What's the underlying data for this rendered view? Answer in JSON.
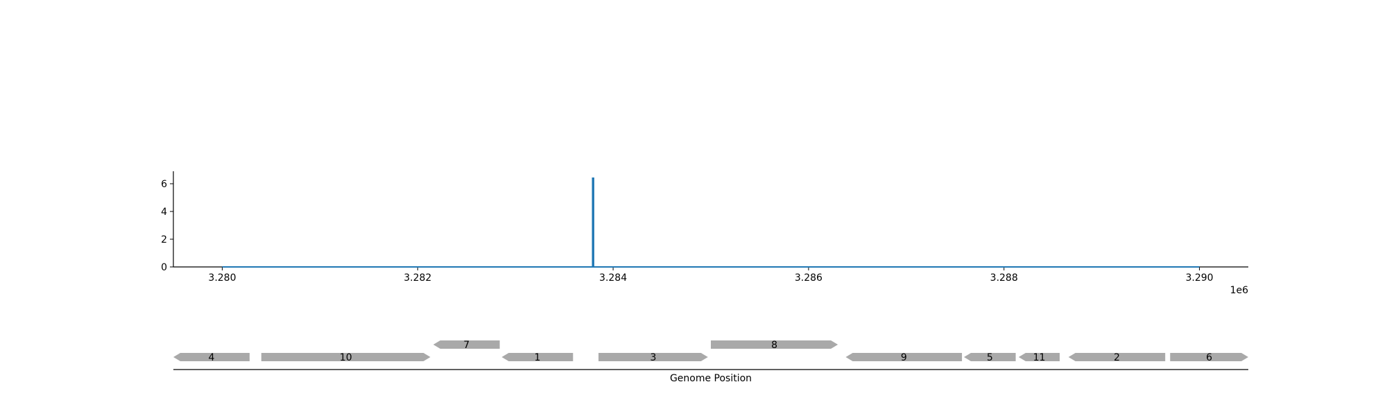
{
  "chart_data": [
    {
      "type": "line",
      "title": "",
      "xlabel": "",
      "ylabel": "",
      "xlim": [
        3279500,
        3290500
      ],
      "ylim": [
        0,
        7
      ],
      "x_offset_label": "1e6",
      "x_ticks": [
        3280000,
        3282000,
        3284000,
        3286000,
        3288000,
        3290000
      ],
      "x_tick_labels": [
        "3.280",
        "3.282",
        "3.284",
        "3.286",
        "3.288",
        "3.290"
      ],
      "y_ticks": [
        0,
        2,
        4,
        6
      ],
      "y_tick_labels": [
        "0",
        "2",
        "4",
        "6"
      ],
      "grid": false,
      "series": [
        {
          "color": "#1f77b4",
          "x": [
            3280000,
            3283790,
            3283790,
            3283800,
            3283800,
            3290000
          ],
          "y": [
            0,
            0,
            6.4,
            6.4,
            0,
            0
          ]
        }
      ]
    },
    {
      "type": "gene_track",
      "xlabel": "Genome Position",
      "gene_color": "#a9a9a9",
      "genes": [
        {
          "label": "4",
          "start": 3279500,
          "end": 3280280,
          "strand": -1,
          "row": 0
        },
        {
          "label": "10",
          "start": 3280400,
          "end": 3282130,
          "strand": 1,
          "row": 0
        },
        {
          "label": "7",
          "start": 3282160,
          "end": 3282840,
          "strand": -1,
          "row": 1
        },
        {
          "label": "1",
          "start": 3282860,
          "end": 3283590,
          "strand": -1,
          "row": 0
        },
        {
          "label": "3",
          "start": 3283850,
          "end": 3284970,
          "strand": 1,
          "row": 0
        },
        {
          "label": "8",
          "start": 3285000,
          "end": 3286300,
          "strand": 1,
          "row": 1
        },
        {
          "label": "9",
          "start": 3286380,
          "end": 3287570,
          "strand": -1,
          "row": 0
        },
        {
          "label": "5",
          "start": 3287590,
          "end": 3288120,
          "strand": -1,
          "row": 0
        },
        {
          "label": "11",
          "start": 3288150,
          "end": 3288570,
          "strand": -1,
          "row": 0
        },
        {
          "label": "2",
          "start": 3288660,
          "end": 3289650,
          "strand": -1,
          "row": 0
        },
        {
          "label": "6",
          "start": 3289700,
          "end": 3290500,
          "strand": 1,
          "row": 0
        }
      ]
    }
  ]
}
